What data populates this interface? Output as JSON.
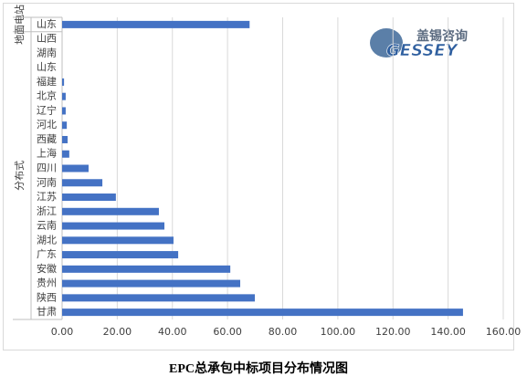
{
  "chart_data": {
    "type": "barh",
    "title": "EPC总承包中标项目分布情况图",
    "categories": [
      "山东",
      "山西",
      "湖南",
      "山东",
      "福建",
      "北京",
      "辽宁",
      "河北",
      "西藏",
      "上海",
      "四川",
      "河南",
      "江苏",
      "浙江",
      "云南",
      "湖北",
      "广东",
      "安徽",
      "贵州",
      "陕西",
      "甘肃"
    ],
    "values": [
      68,
      0,
      0,
      0,
      0.7,
      1.3,
      1.3,
      1.7,
      2,
      2.6,
      9.6,
      14.6,
      19.5,
      35.1,
      37.1,
      40.4,
      42.1,
      61,
      64.6,
      69.9,
      145.4
    ],
    "groups": [
      {
        "name": "地面电站",
        "span": [
          0,
          0
        ]
      },
      {
        "name": "分布式",
        "span": [
          1,
          20
        ]
      }
    ],
    "color": "#4472c4",
    "xlim": [
      0,
      160
    ],
    "xticks": [
      {
        "value": 0,
        "label": "0.00"
      },
      {
        "value": 20,
        "label": "20.00"
      },
      {
        "value": 40,
        "label": "40.00"
      },
      {
        "value": 60,
        "label": "60.00"
      },
      {
        "value": 80,
        "label": "80.00"
      },
      {
        "value": 100,
        "label": "100.00"
      },
      {
        "value": 120,
        "label": "120.00"
      },
      {
        "value": 140,
        "label": "140.00"
      },
      {
        "value": 160,
        "label": "160.00"
      }
    ],
    "grid": true
  },
  "logo": {
    "text": "盖锡咨询",
    "brand": "GESSEY"
  }
}
